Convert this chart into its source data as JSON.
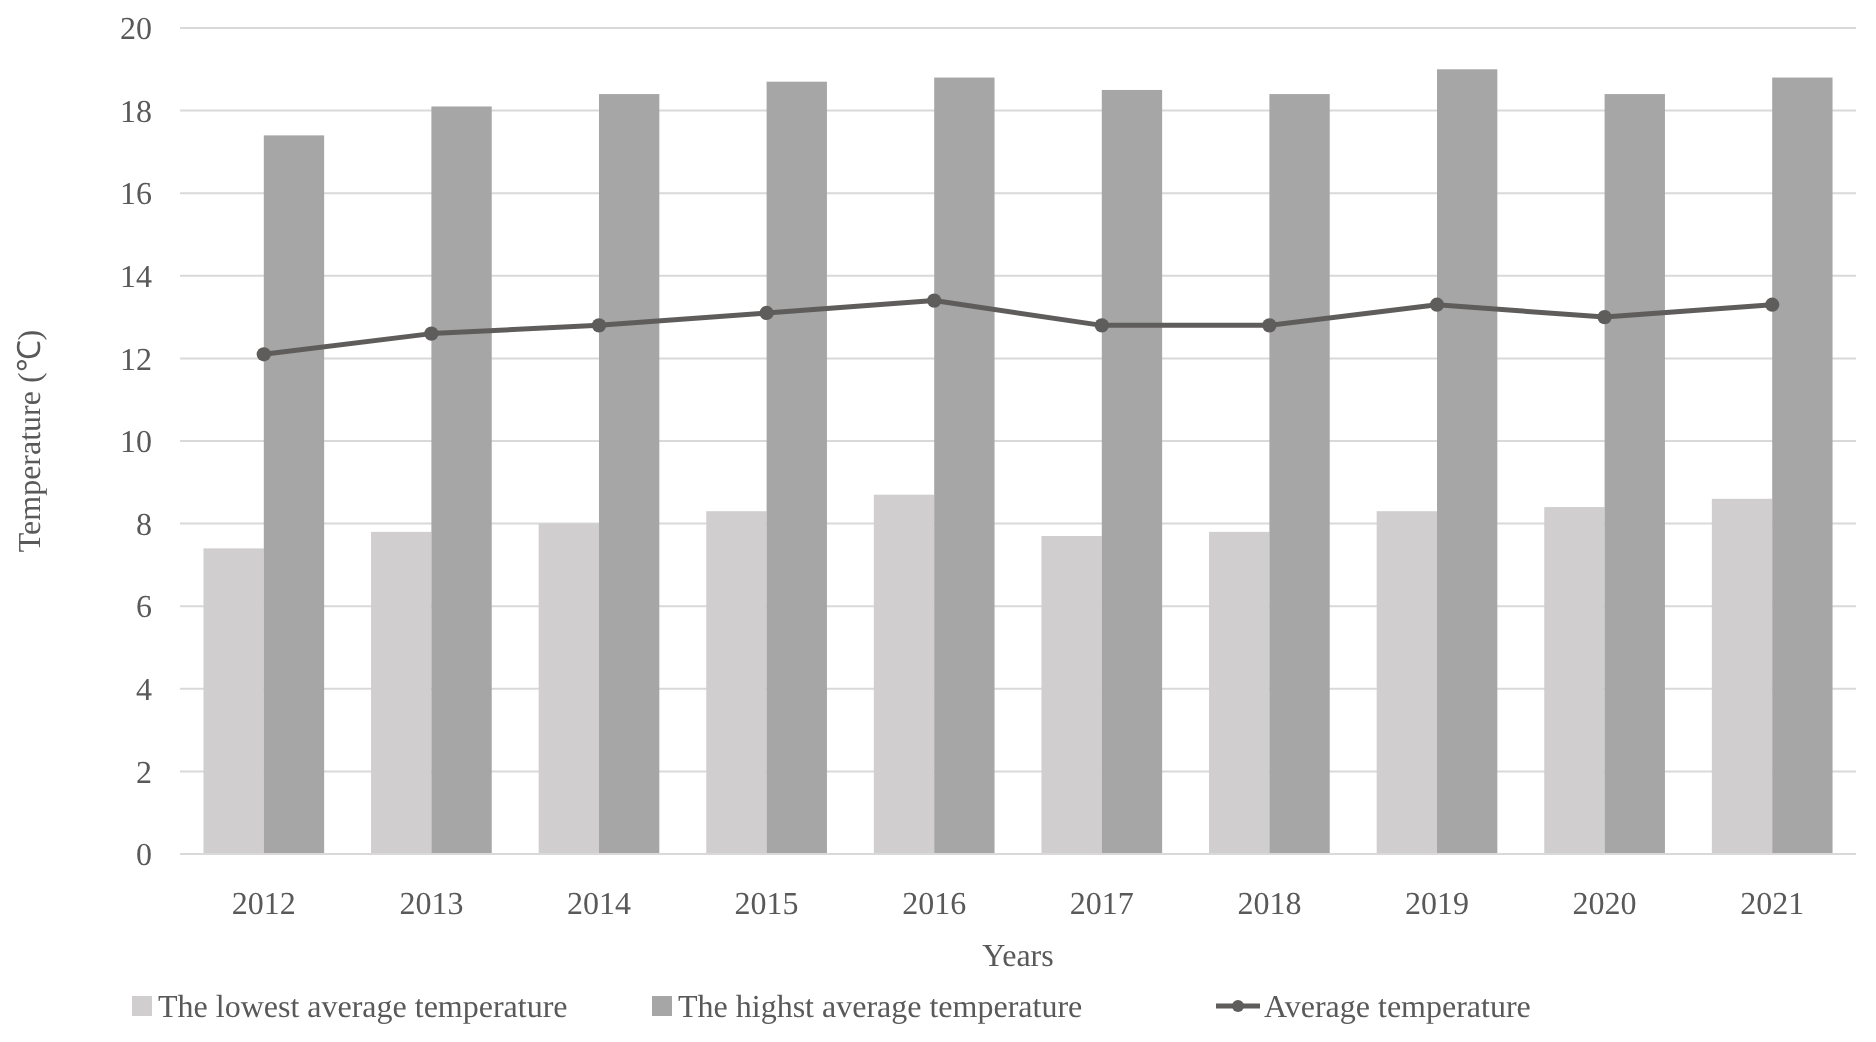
{
  "chart_data": {
    "type": "bar",
    "xlabel": "Years",
    "ylabel": "Temperature (℃)",
    "categories": [
      "2012",
      "2013",
      "2014",
      "2015",
      "2016",
      "2017",
      "2018",
      "2019",
      "2020",
      "2021"
    ],
    "series": [
      {
        "name": "The lowest average temperature",
        "color": "#d0cece",
        "values": [
          7.4,
          7.8,
          8.0,
          8.3,
          8.7,
          7.7,
          7.8,
          8.3,
          8.4,
          8.6
        ]
      },
      {
        "name": "The highst average temperature",
        "color": "#a6a6a6",
        "values": [
          17.4,
          18.1,
          18.4,
          18.7,
          18.8,
          18.5,
          18.4,
          19.0,
          18.4,
          18.8
        ]
      },
      {
        "name": "Average temperature",
        "type": "line",
        "color": "#5f5c5c",
        "marker": "circle",
        "values": [
          12.1,
          12.6,
          12.8,
          13.1,
          13.4,
          12.8,
          12.8,
          13.3,
          13.0,
          13.3
        ]
      }
    ],
    "ylim": [
      0,
      20
    ],
    "yticks": [
      0,
      2,
      4,
      6,
      8,
      10,
      12,
      14,
      16,
      18,
      20
    ],
    "grid": "y",
    "legend": "bottom"
  }
}
